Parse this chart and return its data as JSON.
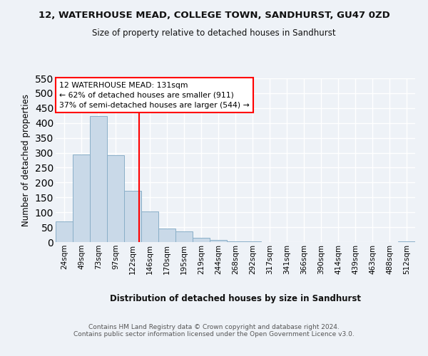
{
  "title1": "12, WATERHOUSE MEAD, COLLEGE TOWN, SANDHURST, GU47 0ZD",
  "title2": "Size of property relative to detached houses in Sandhurst",
  "xlabel": "Distribution of detached houses by size in Sandhurst",
  "ylabel": "Number of detached properties",
  "bin_labels": [
    "24sqm",
    "49sqm",
    "73sqm",
    "97sqm",
    "122sqm",
    "146sqm",
    "170sqm",
    "195sqm",
    "219sqm",
    "244sqm",
    "268sqm",
    "292sqm",
    "317sqm",
    "341sqm",
    "366sqm",
    "390sqm",
    "414sqm",
    "439sqm",
    "463sqm",
    "488sqm",
    "512sqm"
  ],
  "bar_values": [
    70,
    293,
    424,
    291,
    173,
    104,
    46,
    37,
    14,
    7,
    3,
    2,
    1,
    1,
    0,
    0,
    0,
    0,
    0,
    0,
    3
  ],
  "bar_color": "#c9d9e8",
  "bar_edge_color": "#8aafc8",
  "property_line_x": 4,
  "ylim": [
    0,
    550
  ],
  "yticks": [
    0,
    50,
    100,
    150,
    200,
    250,
    300,
    350,
    400,
    450,
    500,
    550
  ],
  "annotation_text": "12 WATERHOUSE MEAD: 131sqm\n← 62% of detached houses are smaller (911)\n37% of semi-detached houses are larger (544) →",
  "footnote": "Contains HM Land Registry data © Crown copyright and database right 2024.\nContains public sector information licensed under the Open Government Licence v3.0.",
  "background_color": "#eef2f7",
  "grid_color": "#ffffff"
}
